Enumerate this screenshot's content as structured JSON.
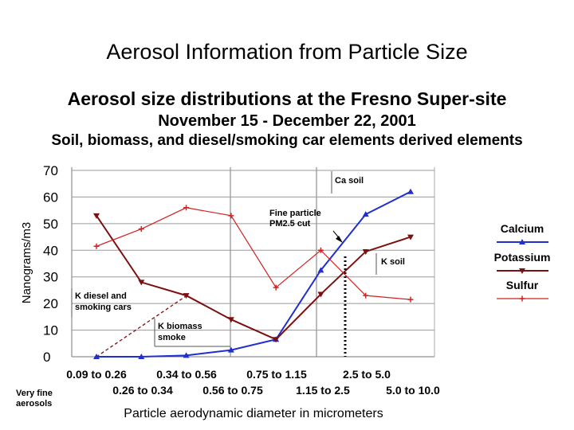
{
  "slide_title": "Aerosol Information from Particle Size",
  "chart_data": {
    "type": "line",
    "title": "Aerosol size distributions at the Fresno Super-site",
    "subtitle": "November 15 - December 22, 2001",
    "subtitle2": "Soil, biomass, and diesel/smoking car elements derived elements",
    "xlabel": "Particle aerodynamic diameter in micrometers",
    "ylabel": "Nanograms/m3",
    "ylim": [
      0,
      70
    ],
    "yticks": [
      "0",
      "10",
      "20",
      "30",
      "40",
      "50",
      "60",
      "70"
    ],
    "categories": [
      "0.09 to 0.26",
      "0.26 to 0.34",
      "0.34 to 0.56",
      "0.56 to 0.75",
      "0.75 to 1.15",
      "1.15 to 2.5",
      "2.5 to 5.0",
      "5.0 to 10.0"
    ],
    "grid": true,
    "legend_position": "right",
    "series": [
      {
        "name": "Calcium",
        "color": "#1f2fd0",
        "marker": "triangle",
        "values": [
          0,
          0,
          0.5,
          2.5,
          6.5,
          32.5,
          53.5,
          62
        ]
      },
      {
        "name": "Potassium",
        "color": "#7a1010",
        "marker": "triangle-down",
        "values": [
          53,
          28,
          23,
          14,
          6.5,
          23.5,
          39.5,
          45
        ]
      },
      {
        "name": "Sulfur",
        "color": "#d42020",
        "marker": "plus",
        "values": [
          41.5,
          48,
          56,
          53,
          26,
          40,
          23,
          21.5
        ]
      }
    ],
    "annotations": {
      "ca_soil": "Ca soil",
      "fine_cut_line1": "Fine particle",
      "fine_cut_line2": "PM2.5 cut",
      "k_soil": "K soil",
      "k_diesel_line1": "K diesel and",
      "k_diesel_line2": "smoking cars",
      "k_biomass_line1": "K biomass",
      "k_biomass_line2": "smoke",
      "very_fine_line1": "Very fine",
      "very_fine_line2": "aerosols"
    }
  }
}
